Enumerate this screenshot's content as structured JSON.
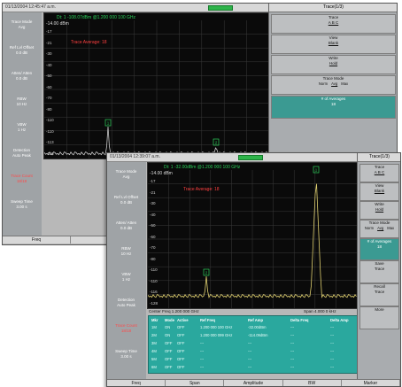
{
  "back": {
    "top_time": "01/13/2004 12:45:47 a.m.",
    "battery_color": "#2eb44a",
    "plot_header": "Dt: 1 -108.07dBm @1.200 000 100 GHz",
    "ref_level": "-14.00 dBm",
    "overlay": "Trace Average: 18",
    "ylabels": [
      "-17",
      "-21",
      "-30",
      "-40",
      "-50",
      "-60",
      "-70",
      "-80",
      "-110",
      "-110",
      "-113",
      "-116"
    ],
    "left": [
      {
        "title": "Trace Mode",
        "value": "Avg"
      },
      {
        "title": "Ref Lvl Offset",
        "value": "0.0 dB"
      },
      {
        "title": "Atten/ Atten",
        "value": "0.0 dB"
      },
      {
        "title": "RBW",
        "value": "10 Hz"
      },
      {
        "title": "VBW",
        "value": "1 Hz"
      },
      {
        "title": "Detection",
        "value": "Auto Peak"
      },
      {
        "title": "Trace Count",
        "value": "18/18"
      },
      {
        "title": "Sweep Time",
        "value": "3.00 s"
      }
    ],
    "right_title": "Trace(1/3)",
    "right": [
      {
        "title": "Trace",
        "value": "A B C"
      },
      {
        "title": "View",
        "value": "Blank"
      },
      {
        "title": "Write",
        "value": "Hold"
      }
    ],
    "trace_mode": {
      "title": "Trace Mode",
      "options": [
        "Norm",
        "Avg",
        "Max"
      ]
    },
    "avg_btn": {
      "title": "# of Averages",
      "value": "18"
    },
    "bottom": [
      "Freq"
    ]
  },
  "front": {
    "top_time": "01/13/2004 12:39:07 a.m.",
    "battery_color": "#2eb44a",
    "plot_header": "Dt: 1 -32.00dBm @1.200 000 100 GHz",
    "ref_level": "-14.00 dBm",
    "overlay": "Trace Average: 18",
    "ylabels": [
      "-17",
      "-21",
      "-30",
      "-40",
      "-50",
      "-60",
      "-70",
      "-80",
      "-110",
      "-110",
      "-116",
      "-128"
    ],
    "left": [
      {
        "title": "Trace Mode",
        "value": "Avg"
      },
      {
        "title": "Ref Lvl Offset",
        "value": "0.0 dB"
      },
      {
        "title": "Atten/ Atten",
        "value": "0.0 dB"
      },
      {
        "title": "RBW",
        "value": "10 Hz"
      },
      {
        "title": "VBW",
        "value": "1 Hz"
      },
      {
        "title": "Detection",
        "value": "Auto Peak"
      },
      {
        "title": "Trace Count",
        "value": "18/18"
      },
      {
        "title": "Sweep Time",
        "value": "3.00 s"
      }
    ],
    "center_freq": "Center Freq 1.200 000 GHz",
    "span": "Span 4.000 0 kHz",
    "right_title": "Trace(1/3)",
    "right": [
      {
        "title": "Trace",
        "value": "A B C"
      },
      {
        "title": "View",
        "value": "Blank"
      },
      {
        "title": "Write",
        "value": "Hold"
      }
    ],
    "trace_mode": {
      "title": "Trace Mode",
      "options": [
        "Norm",
        "Avg",
        "Max"
      ]
    },
    "avg_btn": {
      "title": "# of Averages",
      "value": "18"
    },
    "right_lower": [
      {
        "title": "Save",
        "value": "Trace"
      },
      {
        "title": "Recall",
        "value": "Trace"
      },
      {
        "title": "",
        "value": "More"
      }
    ],
    "table": {
      "headers": [
        "Mkr",
        "Mode",
        "Active",
        "Ref Freq",
        "Ref Amp",
        "Delta Freq",
        "Delta Amp"
      ],
      "rows": [
        [
          "1M",
          "ON",
          "OFF",
          "1.200 000 100 GHz",
          "-32.00dBm",
          "---",
          "---"
        ],
        [
          "2M",
          "ON",
          "OFF",
          "1.200 000 099 GHz",
          "-114.09dBm",
          "---",
          "---"
        ],
        [
          "3M",
          "OFF",
          "OFF",
          "---",
          "---",
          "---",
          "---"
        ],
        [
          "4M",
          "OFF",
          "OFF",
          "---",
          "---",
          "---",
          "---"
        ],
        [
          "5M",
          "OFF",
          "OFF",
          "---",
          "---",
          "---",
          "---"
        ],
        [
          "6M",
          "OFF",
          "OFF",
          "---",
          "---",
          "---",
          "---"
        ]
      ]
    },
    "bottom": [
      "Freq",
      "Span",
      "Amplitude",
      "BW",
      "Marker"
    ]
  },
  "colors": {
    "trace": "#e0d070",
    "grid": "#3a3a3a",
    "marker": "#2bd05a",
    "header_text": "#2bd05a",
    "overlay": "#ff4040",
    "table_bg": "#2aa89e"
  }
}
